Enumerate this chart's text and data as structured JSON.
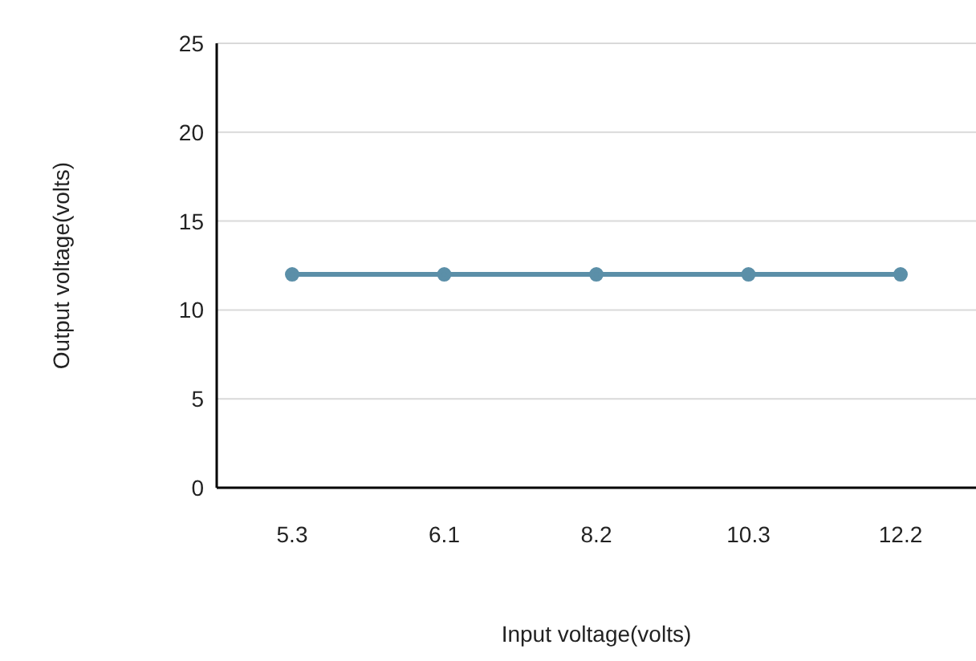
{
  "chart_data": {
    "type": "line",
    "xlabel": "Input voltage(volts)",
    "ylabel": "Output voltage(volts)",
    "categories": [
      "5.3",
      "6.1",
      "8.2",
      "10.3",
      "12.2"
    ],
    "series": [
      {
        "color": "#5b8fa8",
        "values": [
          12,
          12,
          12,
          12,
          12
        ]
      }
    ],
    "ylim": [
      0,
      25
    ],
    "yticks": [
      0,
      5,
      10,
      15,
      20,
      25
    ],
    "grid": "y",
    "marker": "circle",
    "line_style": "solid"
  }
}
